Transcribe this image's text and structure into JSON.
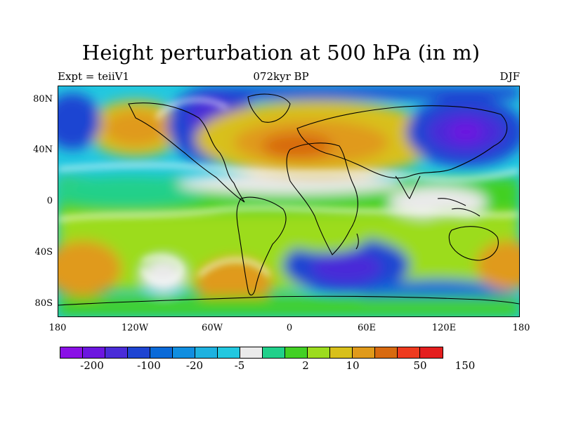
{
  "title": "Height perturbation at 500 hPa (in m)",
  "subtitle_left": "Expt = teiiV1",
  "subtitle_center": "072kyr BP",
  "subtitle_right": "DJF",
  "y_ticks": [
    "80N",
    "40N",
    "0",
    "40S",
    "80S"
  ],
  "x_ticks": [
    "180",
    "120W",
    "60W",
    "0",
    "60E",
    "120E",
    "180"
  ],
  "colorbar": {
    "colors": [
      "#8a10e6",
      "#6c16e0",
      "#4a2cd8",
      "#1e44d2",
      "#0a6ad8",
      "#108ee0",
      "#1eb2e0",
      "#22c8e0",
      "#eaeaea",
      "#20d08a",
      "#42d024",
      "#9cdc1e",
      "#d8c01a",
      "#e09a1a",
      "#d86a10",
      "#ee3a1e",
      "#e41e1e"
    ],
    "labels": [
      "-200",
      "-100",
      "-20",
      "-5",
      "2",
      "10",
      "50",
      "150"
    ]
  },
  "map_colors": {
    "ocean_neutral": "#eaeaea",
    "coast": "#000000"
  }
}
